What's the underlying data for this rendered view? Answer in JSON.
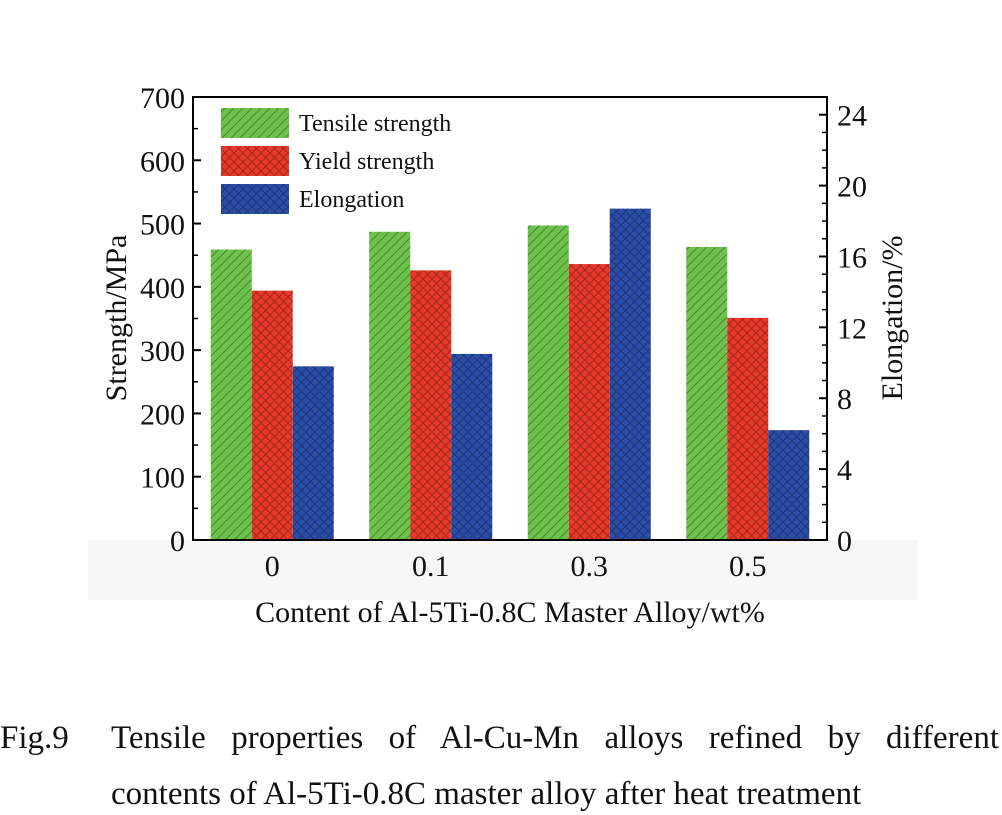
{
  "chart_data": {
    "type": "bar",
    "categories": [
      "0",
      "0.1",
      "0.3",
      "0.5"
    ],
    "xlabel": "Content of Al-5Ti-0.8C Master Alloy/wt%",
    "ylabel": "Strength/MPa",
    "ylabel_right": "Elongation/%",
    "ylim": [
      0,
      700
    ],
    "yticks": [
      0,
      100,
      200,
      300,
      400,
      500,
      600,
      700
    ],
    "ylim_right": [
      0,
      25
    ],
    "yticks_right": [
      0,
      4,
      8,
      12,
      16,
      20,
      24
    ],
    "legend_position": "top-left",
    "grid": false,
    "series": [
      {
        "name": "Tensile strength",
        "axis": "left",
        "color": "#6cc24a",
        "pattern": "hatch",
        "values": [
          459,
          487,
          497,
          463
        ]
      },
      {
        "name": "Yield strength",
        "axis": "left",
        "color": "#e8392a",
        "pattern": "crosshatch",
        "values": [
          394,
          426,
          436,
          351
        ]
      },
      {
        "name": "Elongation",
        "axis": "right",
        "color": "#2a4da8",
        "pattern": "crosshatch",
        "values": [
          9.8,
          10.5,
          18.7,
          6.2
        ]
      }
    ]
  },
  "caption": {
    "label": "Fig.9",
    "line1": "Tensile properties of Al-Cu-Mn alloys refined by different",
    "line2": "contents of Al-5Ti-0.8C master alloy after heat treatment"
  }
}
